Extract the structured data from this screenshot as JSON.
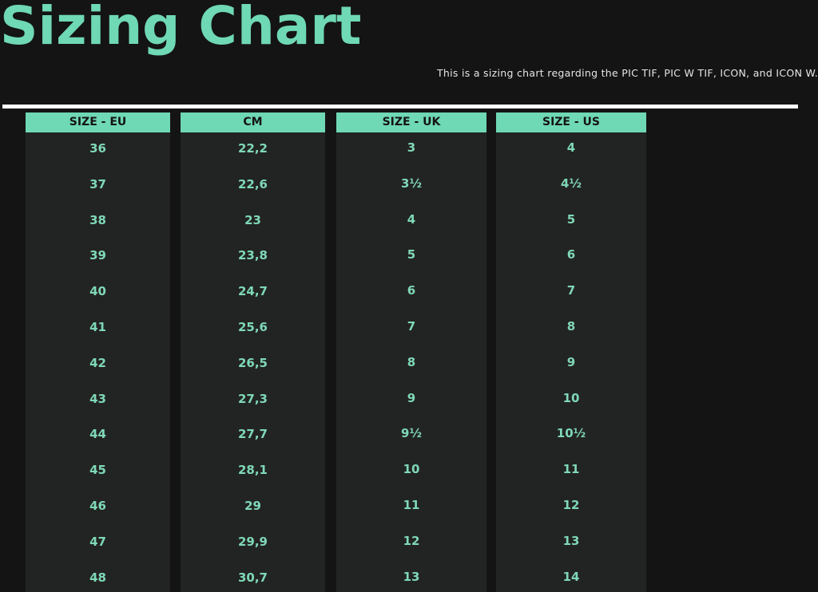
{
  "title": "Sizing Chart",
  "subtitle": "This is a sizing chart regarding the PIC TIF, PIC W TIF, ICON, and ICON W.",
  "colors": {
    "accent": "#6fd8b4",
    "background": "#141414",
    "column": "#222423"
  },
  "table": {
    "columns": [
      {
        "header": "SIZE - EU",
        "values": [
          "36",
          "37",
          "38",
          "39",
          "40",
          "41",
          "42",
          "43",
          "44",
          "45",
          "46",
          "47",
          "48"
        ]
      },
      {
        "header": "CM",
        "values": [
          "22,2",
          "22,6",
          "23",
          "23,8",
          "24,7",
          "25,6",
          "26,5",
          "27,3",
          "27,7",
          "28,1",
          "29",
          "29,9",
          "30,7"
        ]
      },
      {
        "header": "SIZE - UK",
        "values": [
          "3",
          "3½",
          "4",
          "5",
          "6",
          "7",
          "8",
          "9",
          "9½",
          "10",
          "11",
          "12",
          "13"
        ]
      },
      {
        "header": "SIZE - US",
        "values": [
          "4",
          "4½",
          "5",
          "6",
          "7",
          "8",
          "9",
          "10",
          "10½",
          "11",
          "12",
          "13",
          "14"
        ]
      }
    ]
  }
}
